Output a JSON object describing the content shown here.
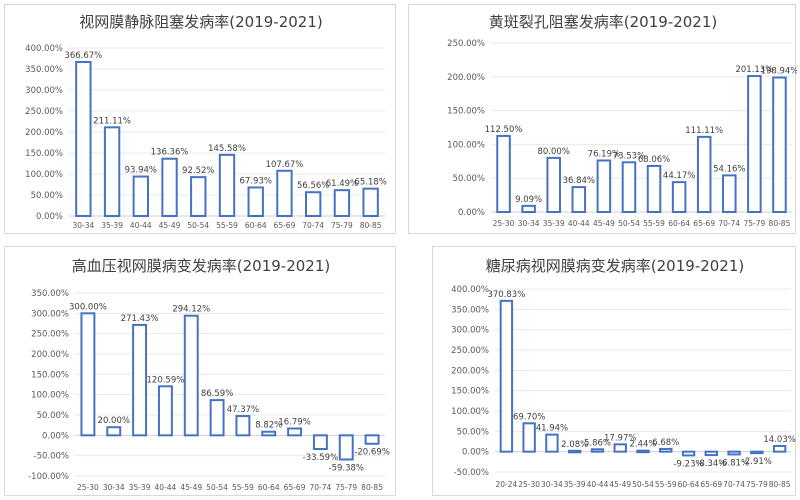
{
  "chart_data": [
    {
      "type": "bar",
      "title": "视网膜静脉阻塞发病率(2019-2021)",
      "categories": [
        "30-34",
        "35-39",
        "40-44",
        "45-49",
        "50-54",
        "55-59",
        "60-64",
        "65-69",
        "70-74",
        "75-79",
        "80-85"
      ],
      "values": [
        366.67,
        211.11,
        93.94,
        136.36,
        92.52,
        145.58,
        67.93,
        107.67,
        56.56,
        61.49,
        65.18
      ],
      "value_labels": [
        "366.67%",
        "211.11%",
        "93.94%",
        "136.36%",
        "92.52%",
        "145.58%",
        "67.93%",
        "107.67%",
        "56.56%",
        "61.49%",
        "65.18%"
      ],
      "yticks": [
        0,
        50,
        100,
        150,
        200,
        250,
        300,
        350,
        400
      ],
      "ytick_labels": [
        "0.00%",
        "50.00%",
        "100.00%",
        "150.00%",
        "200.00%",
        "250.00%",
        "300.00%",
        "350.00%",
        "400.00%"
      ],
      "ylim": [
        0,
        400
      ],
      "grid": true,
      "bar_color": "#4472c4"
    },
    {
      "type": "bar",
      "title": "黄斑裂孔阻塞发病率(2019-2021)",
      "categories": [
        "25-30",
        "30-34",
        "35-39",
        "40-44",
        "45-49",
        "50-54",
        "55-59",
        "60-64",
        "65-69",
        "70-74",
        "75-79",
        "80-85"
      ],
      "values": [
        112.5,
        9.09,
        80.0,
        36.84,
        76.19,
        73.53,
        68.06,
        44.17,
        111.11,
        54.16,
        201.13,
        198.94
      ],
      "value_labels": [
        "112.50%",
        "9.09%",
        "80.00%",
        "36.84%",
        "76.19%",
        "73.53%",
        "68.06%",
        "44.17%",
        "111.11%",
        "54.16%",
        "201.13%",
        "198.94%"
      ],
      "yticks": [
        0,
        50,
        100,
        150,
        200,
        250
      ],
      "ytick_labels": [
        "0.00%",
        "50.00%",
        "100.00%",
        "150.00%",
        "200.00%",
        "250.00%"
      ],
      "ylim": [
        0,
        250
      ],
      "grid": true,
      "bar_color": "#4472c4"
    },
    {
      "type": "bar",
      "title": "高血压视网膜病变发病率(2019-2021)",
      "categories": [
        "25-30",
        "30-34",
        "35-39",
        "40-44",
        "45-49",
        "50-54",
        "55-59",
        "60-64",
        "65-69",
        "70-74",
        "75-79",
        "80-85"
      ],
      "values": [
        300.0,
        20.0,
        271.43,
        120.59,
        294.12,
        86.59,
        47.37,
        8.82,
        16.79,
        -33.59,
        -59.38,
        -20.69
      ],
      "value_labels": [
        "300.00%",
        "20.00%",
        "271.43%",
        "120.59%",
        "294.12%",
        "86.59%",
        "47.37%",
        "8.82%",
        "16.79%",
        "-33.59%",
        "-59.38%",
        "-20.69%"
      ],
      "yticks": [
        -100,
        -50,
        0,
        50,
        100,
        150,
        200,
        250,
        300,
        350
      ],
      "ytick_labels": [
        "-100.00%",
        "-50.00%",
        "0.00%",
        "50.00%",
        "100.00%",
        "150.00%",
        "200.00%",
        "250.00%",
        "300.00%",
        "350.00%"
      ],
      "ylim": [
        -100,
        350
      ],
      "grid": true,
      "bar_color": "#4472c4"
    },
    {
      "type": "bar",
      "title": "糖尿病视网膜病变发病率(2019-2021)",
      "categories": [
        "20-24",
        "25-30",
        "30-34",
        "35-39",
        "40-44",
        "45-49",
        "50-54",
        "55-59",
        "60-64",
        "65-69",
        "70-74",
        "75-79",
        "80-85"
      ],
      "values": [
        370.83,
        69.7,
        41.94,
        2.08,
        5.86,
        17.97,
        2.44,
        6.68,
        -9.23,
        -8.34,
        -6.81,
        -2.91,
        14.03
      ],
      "value_labels": [
        "370.83%",
        "69.70%",
        "41.94%",
        "2.08%",
        "5.86%",
        "17.97%",
        "2.44%",
        "6.68%",
        "-9.23%",
        "-8.34%",
        "-6.81%",
        "-2.91%",
        "14.03%"
      ],
      "yticks": [
        -50,
        0,
        50,
        100,
        150,
        200,
        250,
        300,
        350,
        400
      ],
      "ytick_labels": [
        "-50.00%",
        "0.00%",
        "50.00%",
        "100.00%",
        "150.00%",
        "200.00%",
        "250.00%",
        "300.00%",
        "350.00%",
        "400.00%"
      ],
      "ylim": [
        -50,
        400
      ],
      "grid": true,
      "bar_color": "#4472c4"
    }
  ]
}
